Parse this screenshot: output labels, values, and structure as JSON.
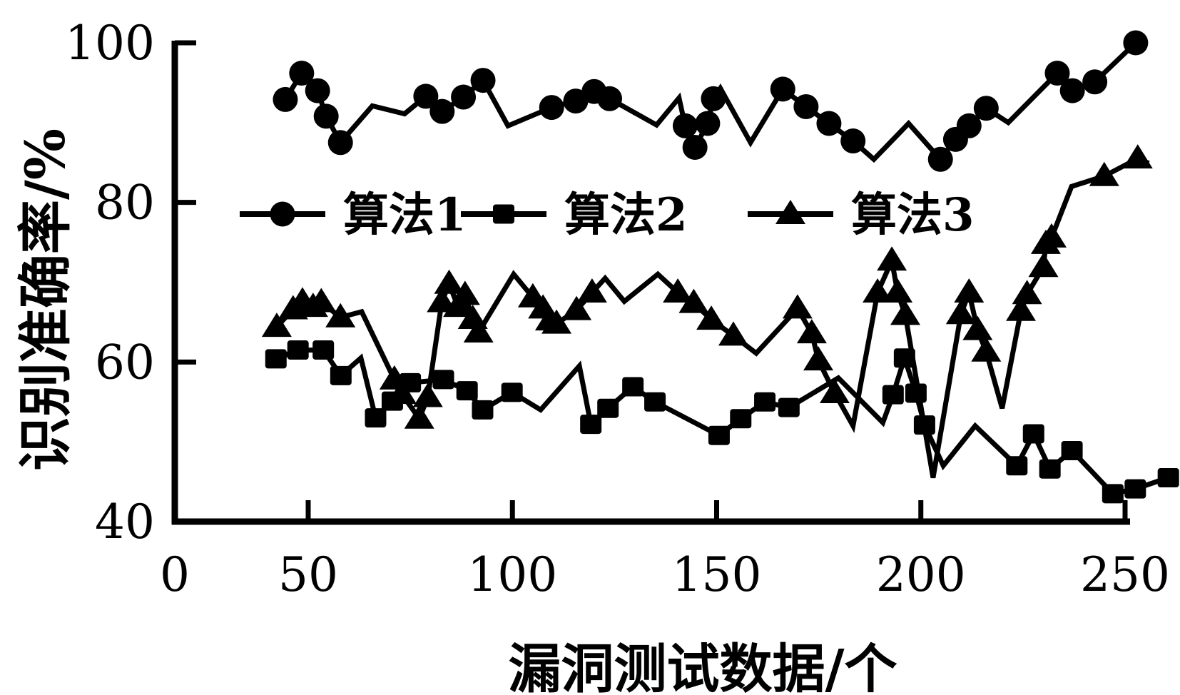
{
  "page": {
    "background_color": "#ffffff",
    "foreground_color": "#000000"
  },
  "chart_data": {
    "type": "line",
    "title": "",
    "xlabel": "漏洞测试数据/个",
    "ylabel": "识别准确率/%",
    "xlim": [
      0,
      260
    ],
    "ylim": [
      40,
      100
    ],
    "xticks": [
      0,
      50,
      100,
      150,
      200,
      250
    ],
    "yticks": [
      40,
      60,
      80,
      100
    ],
    "grid": false,
    "legend_position": "upper-center-inside",
    "series": [
      {
        "name": "算法1",
        "marker": "circle",
        "color": "#000000",
        "points": [
          [
            44.4,
            92.9,
            1
          ],
          [
            48.4,
            96.2,
            1
          ],
          [
            52.3,
            94.0,
            1
          ],
          [
            54.4,
            90.8,
            1
          ],
          [
            57.9,
            87.5,
            1
          ],
          [
            65.7,
            92.1,
            0
          ],
          [
            73.6,
            91.1,
            0
          ],
          [
            78.8,
            93.3,
            1
          ],
          [
            82.8,
            91.4,
            1
          ],
          [
            88.0,
            93.2,
            1
          ],
          [
            92.8,
            95.3,
            1
          ],
          [
            98.9,
            89.6,
            0
          ],
          [
            109.6,
            91.9,
            1
          ],
          [
            115.5,
            92.7,
            1
          ],
          [
            120.0,
            93.9,
            1
          ],
          [
            123.8,
            93.0,
            1
          ],
          [
            135.3,
            89.7,
            0
          ],
          [
            140.8,
            93.1,
            0
          ],
          [
            142.3,
            89.6,
            1
          ],
          [
            144.7,
            86.9,
            1
          ],
          [
            147.8,
            89.9,
            1
          ],
          [
            149.2,
            93.0,
            1
          ],
          [
            150.9,
            94.3,
            0
          ],
          [
            158.3,
            87.5,
            0
          ],
          [
            166.2,
            94.2,
            1
          ],
          [
            171.9,
            92.0,
            1
          ],
          [
            177.5,
            89.9,
            1
          ],
          [
            183.4,
            87.7,
            1
          ],
          [
            188.5,
            85.4,
            0
          ],
          [
            197.0,
            89.9,
            0
          ],
          [
            204.8,
            85.4,
            1
          ],
          [
            208.5,
            87.9,
            1
          ],
          [
            211.8,
            89.6,
            1
          ],
          [
            216.0,
            91.8,
            1
          ],
          [
            221.4,
            90.0,
            0
          ],
          [
            233.4,
            96.2,
            1
          ],
          [
            237.1,
            94.0,
            1
          ],
          [
            242.6,
            95.1,
            1
          ],
          [
            252.6,
            100.0,
            1
          ]
        ]
      },
      {
        "name": "算法2",
        "marker": "square",
        "color": "#000000",
        "points": [
          [
            42.1,
            60.4,
            1
          ],
          [
            47.5,
            61.5,
            1
          ],
          [
            53.7,
            61.5,
            1
          ],
          [
            58.0,
            58.3,
            1
          ],
          [
            62.9,
            60.5,
            0
          ],
          [
            66.5,
            53.0,
            1
          ],
          [
            70.6,
            55.1,
            1
          ],
          [
            75.0,
            57.4,
            1
          ],
          [
            83.1,
            57.8,
            1
          ],
          [
            88.9,
            56.4,
            1
          ],
          [
            92.7,
            54.0,
            1
          ],
          [
            99.9,
            56.2,
            1
          ],
          [
            106.9,
            54.0,
            0
          ],
          [
            116.4,
            59.5,
            0
          ],
          [
            119.2,
            52.2,
            1
          ],
          [
            123.4,
            54.2,
            1
          ],
          [
            129.5,
            56.9,
            1
          ],
          [
            134.9,
            55.0,
            1
          ],
          [
            150.6,
            50.8,
            1
          ],
          [
            155.9,
            52.9,
            1
          ],
          [
            161.8,
            55.0,
            1
          ],
          [
            167.7,
            54.3,
            1
          ],
          [
            179.8,
            58.0,
            0
          ],
          [
            190.7,
            52.4,
            0
          ],
          [
            193.2,
            55.9,
            1
          ],
          [
            196.0,
            60.5,
            1
          ],
          [
            198.8,
            56.1,
            1
          ],
          [
            200.9,
            52.1,
            1
          ],
          [
            205.5,
            47.0,
            0
          ],
          [
            213.3,
            52.0,
            0
          ],
          [
            223.5,
            47.0,
            1
          ],
          [
            227.6,
            51.0,
            1
          ],
          [
            231.6,
            46.6,
            1
          ],
          [
            237.0,
            48.9,
            1
          ],
          [
            247.0,
            43.5,
            1
          ],
          [
            252.5,
            44.1,
            1
          ],
          [
            260.6,
            45.5,
            1
          ]
        ]
      },
      {
        "name": "算法3",
        "marker": "triangle",
        "color": "#000000",
        "points": [
          [
            42.3,
            64.4,
            1
          ],
          [
            46.3,
            66.6,
            1
          ],
          [
            48.6,
            67.6,
            1
          ],
          [
            51.2,
            66.9,
            1
          ],
          [
            53.2,
            67.5,
            1
          ],
          [
            57.9,
            65.6,
            1
          ],
          [
            63.1,
            66.3,
            0
          ],
          [
            71.1,
            57.8,
            1
          ],
          [
            72.9,
            56.0,
            1
          ],
          [
            77.2,
            52.9,
            1
          ],
          [
            79.3,
            55.6,
            1
          ],
          [
            82.7,
            67.5,
            1
          ],
          [
            84.5,
            69.8,
            1
          ],
          [
            86.7,
            66.9,
            1
          ],
          [
            88.4,
            68.4,
            1
          ],
          [
            90.3,
            65.4,
            1
          ],
          [
            91.7,
            63.7,
            1
          ],
          [
            100.3,
            71.0,
            0
          ],
          [
            105.0,
            68.1,
            1
          ],
          [
            107.5,
            66.7,
            1
          ],
          [
            109.2,
            65.2,
            1
          ],
          [
            110.8,
            64.8,
            1
          ],
          [
            115.7,
            66.5,
            1
          ],
          [
            119.5,
            68.7,
            1
          ],
          [
            122.7,
            70.5,
            0
          ],
          [
            127.4,
            67.6,
            0
          ],
          [
            135.6,
            71.0,
            0
          ],
          [
            140.5,
            68.7,
            1
          ],
          [
            144.4,
            67.4,
            1
          ],
          [
            148.7,
            65.3,
            1
          ],
          [
            154.1,
            63.3,
            1
          ],
          [
            159.7,
            61.1,
            0
          ],
          [
            169.8,
            66.7,
            1
          ],
          [
            173.3,
            63.6,
            1
          ],
          [
            174.9,
            60.2,
            1
          ],
          [
            178.9,
            56.1,
            1
          ],
          [
            183.4,
            52.0,
            0
          ],
          [
            189.4,
            68.7,
            1
          ],
          [
            192.9,
            72.7,
            1
          ],
          [
            194.3,
            68.7,
            1
          ],
          [
            196.2,
            65.9,
            1
          ],
          [
            203.0,
            45.5,
            0
          ],
          [
            209.8,
            66.0,
            1
          ],
          [
            211.8,
            68.7,
            1
          ],
          [
            213.9,
            64.0,
            1
          ],
          [
            216.0,
            61.3,
            1
          ],
          [
            219.9,
            54.2,
            0
          ],
          [
            224.5,
            66.4,
            1
          ],
          [
            226.0,
            68.5,
            1
          ],
          [
            230.0,
            71.9,
            1
          ],
          [
            230.6,
            74.8,
            1
          ],
          [
            232.0,
            75.6,
            1
          ],
          [
            236.9,
            82.0,
            0
          ],
          [
            244.9,
            83.3,
            1
          ],
          [
            253.1,
            85.5,
            1
          ],
          [
            255.8,
            84.9,
            0
          ]
        ]
      }
    ]
  }
}
